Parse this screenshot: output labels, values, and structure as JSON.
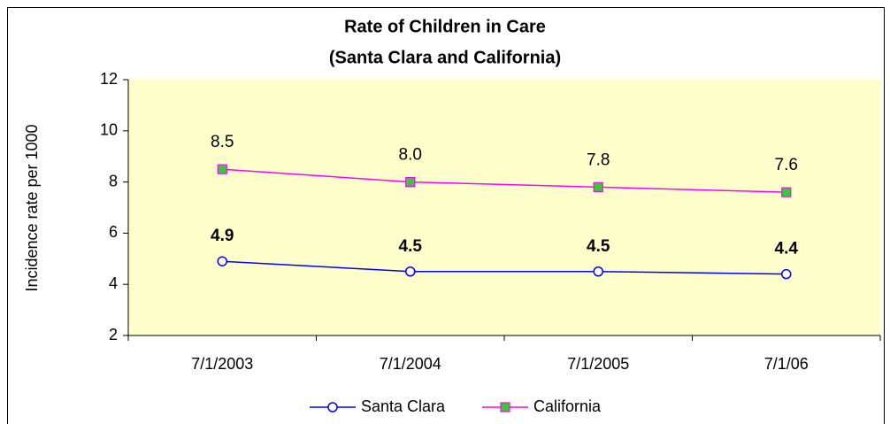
{
  "chart_data": {
    "type": "line",
    "title": "Rate of Children in Care",
    "subtitle": "(Santa Clara and California)",
    "y_label": "Incidence rate per 1000",
    "categories": [
      "7/1/2003",
      "7/1/2004",
      "7/1/2005",
      "7/1/06"
    ],
    "series": [
      {
        "name": "Santa Clara",
        "color": "#0000ff",
        "marker": "circle",
        "values": [
          4.9,
          4.5,
          4.5,
          4.4
        ]
      },
      {
        "name": "California",
        "color": "#ff00ff",
        "marker": "square",
        "marker_color": "#33cc33",
        "values": [
          8.5,
          8.0,
          7.8,
          7.6
        ],
        "value_labels": [
          "8.5",
          "8.0",
          "7.8",
          "7.6"
        ]
      }
    ],
    "ylim": [
      2,
      12
    ],
    "yticks": [
      2,
      4,
      6,
      8,
      10,
      12
    ],
    "legend": "bottom"
  }
}
